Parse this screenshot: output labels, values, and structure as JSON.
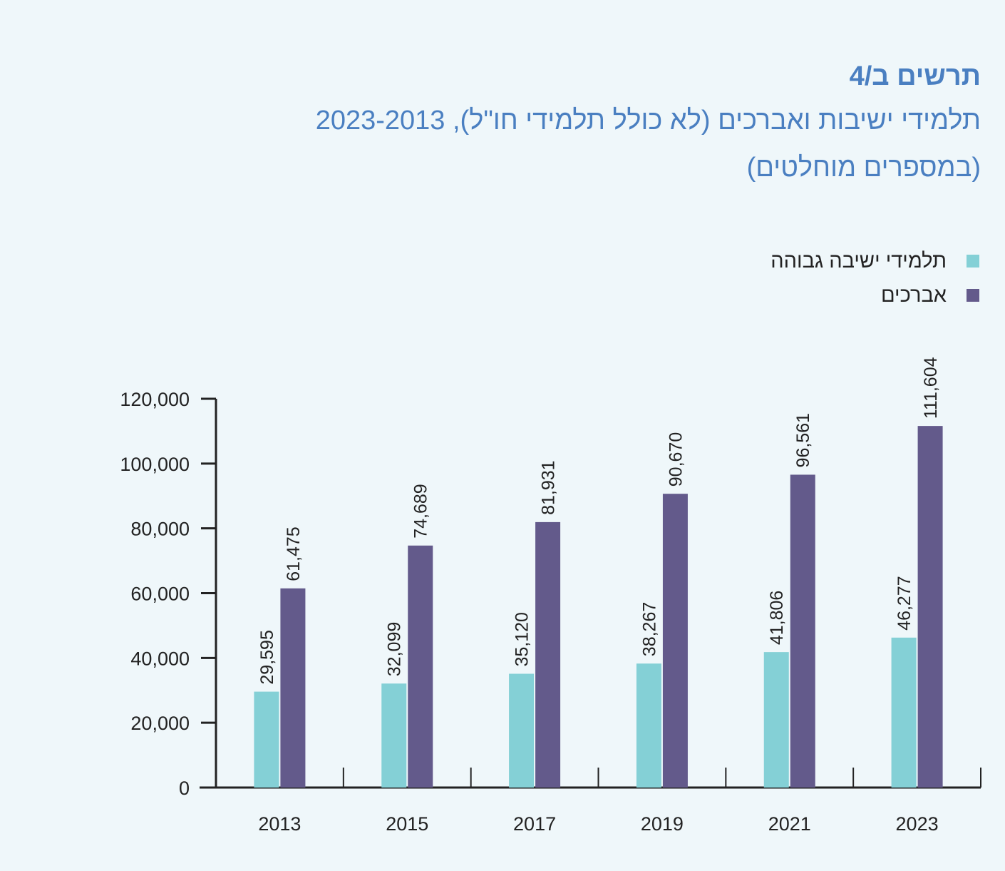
{
  "header": {
    "figure_number": "תרשים ב/4",
    "title": "תלמידי ישיבות ואברכים (לא כולל תלמידי חו\"ל), 2023-2013",
    "subtitle": "(במספרים מוחלטים)"
  },
  "colors": {
    "title": "#4a7fc1",
    "series_yeshiva": "#84d0d6",
    "series_avrechim": "#635a8b",
    "axis": "#222222",
    "background": "#eff7fa"
  },
  "chart_data": {
    "type": "bar",
    "title": "תלמידי ישיבות ואברכים (לא כולל תלמידי חו\"ל), 2023-2013",
    "subtitle": "(במספרים מוחלטים)",
    "xlabel": "",
    "ylabel": "",
    "categories": [
      "2013",
      "2015",
      "2017",
      "2019",
      "2021",
      "2023"
    ],
    "series": [
      {
        "name": "תלמידי ישיבה גבוהה",
        "color": "#84d0d6",
        "values": [
          29595,
          32099,
          35120,
          38267,
          41806,
          46277
        ],
        "labels": [
          "29,595",
          "32,099",
          "35,120",
          "38,267",
          "41,806",
          "46,277"
        ]
      },
      {
        "name": "אברכים",
        "color": "#635a8b",
        "values": [
          61475,
          74689,
          81931,
          90670,
          96561,
          111604
        ],
        "labels": [
          "61,475",
          "74,689",
          "81,931",
          "90,670",
          "96,561",
          "111,604"
        ]
      }
    ],
    "ylim": [
      0,
      120000
    ],
    "yticks": [
      0,
      20000,
      40000,
      60000,
      80000,
      100000,
      120000
    ],
    "ytick_labels": [
      "0",
      "20,000",
      "40,000",
      "60,000",
      "80,000",
      "100,000",
      "120,000"
    ],
    "grid": false,
    "legend_position": "top-right",
    "data_labels": "rotated-vertical"
  }
}
